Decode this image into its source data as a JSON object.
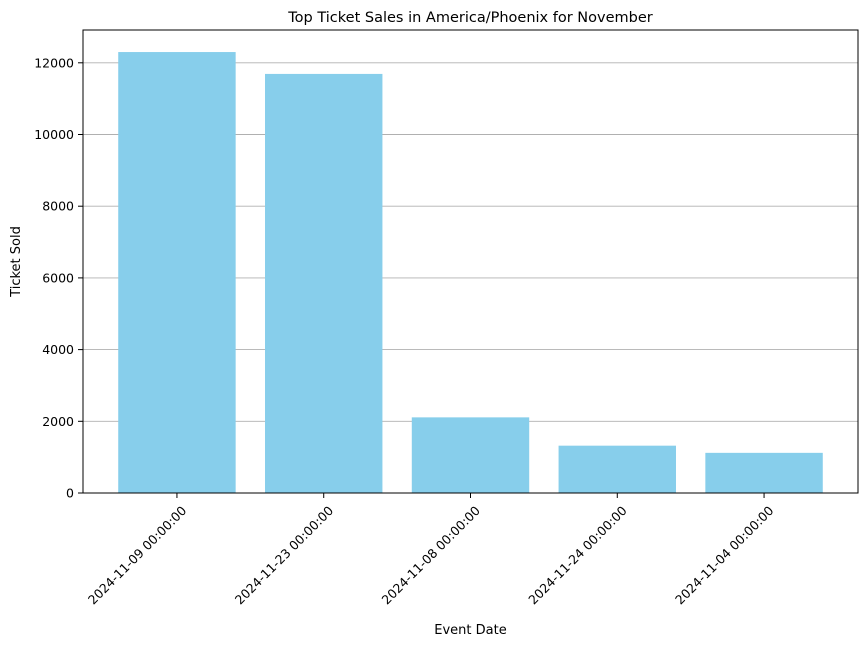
{
  "chart_data": {
    "type": "bar",
    "title": "Top Ticket Sales in America/Phoenix for November",
    "xlabel": "Event Date",
    "ylabel": "Ticket Sold",
    "categories": [
      "2024-11-09 00:00:00",
      "2024-11-23 00:00:00",
      "2024-11-08 00:00:00",
      "2024-11-24 00:00:00",
      "2024-11-04 00:00:00"
    ],
    "values": [
      12300,
      11690,
      2110,
      1320,
      1120
    ],
    "ylim": [
      0,
      12915
    ],
    "yticks": [
      0,
      2000,
      4000,
      6000,
      8000,
      10000,
      12000
    ],
    "grid": "y-axis only",
    "bar_color": "#87ceeb",
    "grid_color": "#b0b0b0",
    "xtick_rotation": 45
  }
}
